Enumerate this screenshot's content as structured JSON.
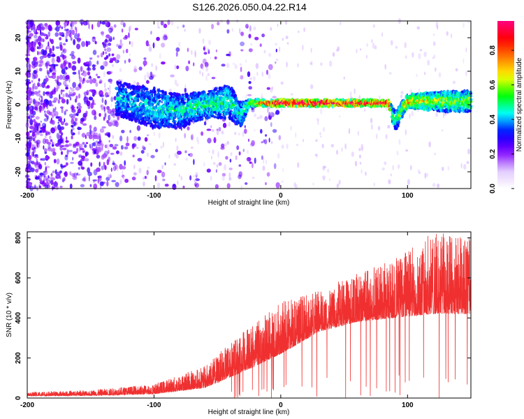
{
  "page_title": "S126.2026.050.04.22.R14",
  "chart_data": [
    {
      "type": "heatmap",
      "xlabel": "Height of straight line (km)",
      "ylabel": "Frequency (Hz)",
      "xlim": [
        -200,
        150
      ],
      "ylim": [
        -25,
        25
      ],
      "xticks": [
        -200,
        -100,
        0,
        100
      ],
      "yticks": [
        20,
        10,
        0,
        -10,
        -20
      ],
      "colorbar": {
        "label": "Normalized spectral amplitude",
        "range": [
          0,
          0.97
        ],
        "ticks": [
          0.0,
          0.2,
          0.4,
          0.6,
          0.8
        ],
        "colormap": [
          "#ffffff",
          "#e0c8ff",
          "#8000ff",
          "#0000ff",
          "#00ffff",
          "#00ff00",
          "#ffff00",
          "#ff8000",
          "#ff0000",
          "#ff0080"
        ]
      },
      "ridge": [
        {
          "x": -130,
          "center": 2,
          "spread": 5,
          "amp": 0.25
        },
        {
          "x": -100,
          "center": -1,
          "spread": 6,
          "amp": 0.3
        },
        {
          "x": -80,
          "center": -2,
          "spread": 5,
          "amp": 0.3
        },
        {
          "x": -60,
          "center": 0,
          "spread": 4,
          "amp": 0.35
        },
        {
          "x": -40,
          "center": 1,
          "spread": 5,
          "amp": 0.35
        },
        {
          "x": -32,
          "center": -3,
          "spread": 4,
          "amp": 0.3
        },
        {
          "x": -25,
          "center": 0.5,
          "spread": 1,
          "amp": 0.5
        },
        {
          "x": 0,
          "center": 0.5,
          "spread": 1,
          "amp": 0.9
        },
        {
          "x": 50,
          "center": 0.5,
          "spread": 1,
          "amp": 0.85
        },
        {
          "x": 85,
          "center": 0.5,
          "spread": 1,
          "amp": 0.8
        },
        {
          "x": 90,
          "center": -5,
          "spread": 3,
          "amp": 0.3
        },
        {
          "x": 100,
          "center": 1,
          "spread": 2,
          "amp": 0.6
        },
        {
          "x": 130,
          "center": 1,
          "spread": 3,
          "amp": 0.45
        },
        {
          "x": 150,
          "center": 1,
          "spread": 3,
          "amp": 0.45
        }
      ]
    },
    {
      "type": "line",
      "xlabel": "Height of straight line (km)",
      "ylabel": "SNR (10 * v/v)",
      "xlim": [
        -200,
        150
      ],
      "ylim": [
        0,
        830
      ],
      "xticks": [
        -200,
        -100,
        0,
        100
      ],
      "yticks": [
        0,
        200,
        400,
        600,
        800
      ],
      "series": [
        {
          "name": "SNR",
          "color": "#f03030",
          "envelope_x": [
            -200,
            -150,
            -100,
            -60,
            -30,
            0,
            30,
            60,
            90,
            120,
            150
          ],
          "envelope_base": [
            10,
            12,
            20,
            50,
            130,
            220,
            330,
            380,
            400,
            420,
            420
          ],
          "envelope_peak": [
            30,
            40,
            70,
            160,
            330,
            480,
            540,
            620,
            700,
            830,
            800
          ]
        }
      ]
    }
  ]
}
